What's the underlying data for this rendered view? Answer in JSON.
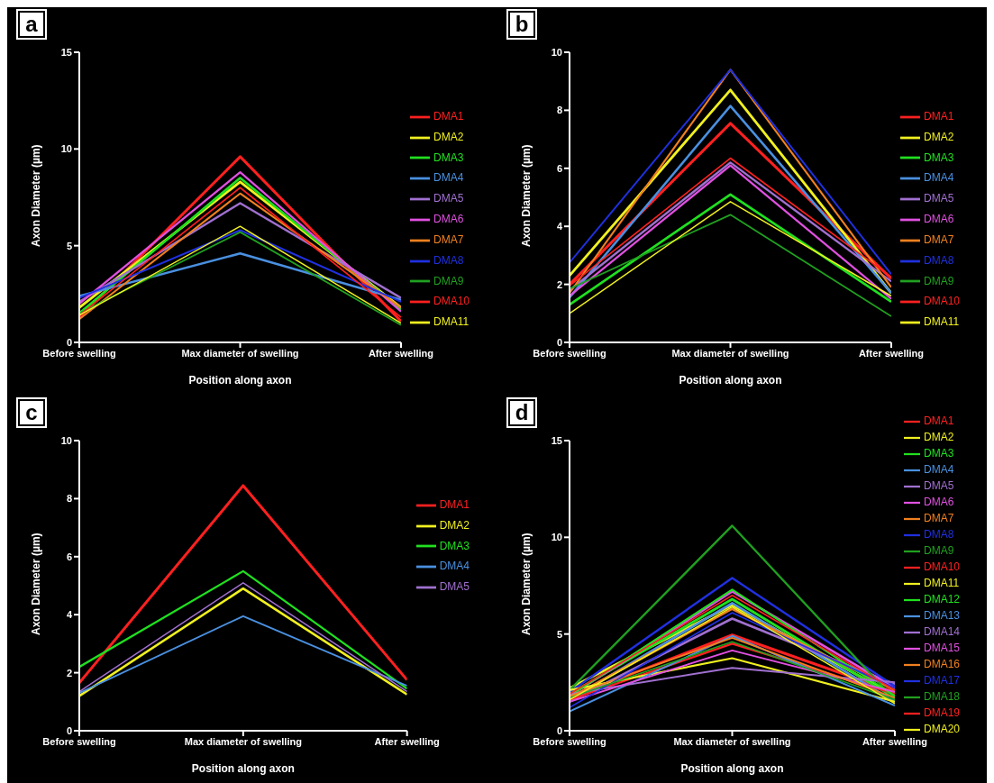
{
  "chart_data": [
    {
      "type": "line",
      "title": "a",
      "xlabel": "Position along axon",
      "ylabel": "Axon Diameter (µm)",
      "categories": [
        "Before swelling",
        "Max diameter of swelling",
        "After swelling"
      ],
      "ylim": [
        0,
        15
      ],
      "yticks": [
        0,
        5,
        10,
        15
      ],
      "legend": "right",
      "marker": "none",
      "series": [
        {
          "name": "DMA1",
          "color": "#ff2020",
          "values": [
            1.3,
            9.6,
            1.1
          ]
        },
        {
          "name": "DMA2",
          "color": "#f0f020",
          "values": [
            1.8,
            8.3,
            1.8
          ]
        },
        {
          "name": "DMA3",
          "color": "#20e020",
          "values": [
            1.5,
            8.5,
            1.7
          ]
        },
        {
          "name": "DMA4",
          "color": "#4a90e0",
          "values": [
            2.4,
            4.6,
            2.2
          ]
        },
        {
          "name": "DMA5",
          "color": "#a070d0",
          "values": [
            2.1,
            7.2,
            2.3
          ]
        },
        {
          "name": "DMA6",
          "color": "#e050e0",
          "values": [
            2.0,
            8.8,
            1.6
          ]
        },
        {
          "name": "DMA7",
          "color": "#f08020",
          "values": [
            1.2,
            7.7,
            1.8
          ]
        },
        {
          "name": "DMA8",
          "color": "#2030e0",
          "values": [
            2.3,
            5.8,
            2.1
          ]
        },
        {
          "name": "DMA9",
          "color": "#20a020",
          "values": [
            1.5,
            5.7,
            0.9
          ]
        },
        {
          "name": "DMA10",
          "color": "#ff2020",
          "values": [
            1.4,
            8.0,
            1.3
          ]
        },
        {
          "name": "DMA11",
          "color": "#f0f020",
          "values": [
            1.4,
            6.0,
            1.0
          ]
        }
      ]
    },
    {
      "type": "line",
      "title": "b",
      "xlabel": "Position along axon",
      "ylabel": "Axon Diameter (µm)",
      "categories": [
        "Before swelling",
        "Max diameter of swelling",
        "After swelling"
      ],
      "ylim": [
        0,
        10
      ],
      "yticks": [
        0,
        2,
        4,
        6,
        8,
        10
      ],
      "legend": "right",
      "marker": "none",
      "series": [
        {
          "name": "DMA1",
          "color": "#ff2020",
          "values": [
            2.0,
            7.55,
            2.2
          ]
        },
        {
          "name": "DMA2",
          "color": "#f0f020",
          "values": [
            2.3,
            8.7,
            1.7
          ]
        },
        {
          "name": "DMA3",
          "color": "#20e020",
          "values": [
            1.3,
            5.1,
            1.4
          ]
        },
        {
          "name": "DMA4",
          "color": "#4a90e0",
          "values": [
            1.55,
            8.15,
            1.7
          ]
        },
        {
          "name": "DMA5",
          "color": "#a070d0",
          "values": [
            1.8,
            6.2,
            2.1
          ]
        },
        {
          "name": "DMA6",
          "color": "#e050e0",
          "values": [
            1.6,
            6.1,
            1.5
          ]
        },
        {
          "name": "DMA7",
          "color": "#f08020",
          "values": [
            1.7,
            9.4,
            1.9
          ]
        },
        {
          "name": "DMA8",
          "color": "#2030e0",
          "values": [
            2.75,
            9.4,
            2.35
          ]
        },
        {
          "name": "DMA9",
          "color": "#20a020",
          "values": [
            1.85,
            4.4,
            0.9
          ]
        },
        {
          "name": "DMA10",
          "color": "#ff2020",
          "values": [
            1.95,
            6.35,
            2.25
          ]
        },
        {
          "name": "DMA11",
          "color": "#f0f020",
          "values": [
            1.0,
            4.85,
            1.6
          ]
        }
      ]
    },
    {
      "type": "line",
      "title": "c",
      "xlabel": "Position along axon",
      "ylabel": "Axon Diameter (µm)",
      "categories": [
        "Before swelling",
        "Max diameter of swelling",
        "After swelling"
      ],
      "ylim": [
        0,
        10
      ],
      "yticks": [
        0,
        2,
        4,
        6,
        8,
        10
      ],
      "legend": "right",
      "marker": "none",
      "series": [
        {
          "name": "DMA1",
          "color": "#ff2020",
          "values": [
            1.65,
            8.45,
            1.75
          ]
        },
        {
          "name": "DMA2",
          "color": "#f0f020",
          "values": [
            1.2,
            4.9,
            1.25
          ]
        },
        {
          "name": "DMA3",
          "color": "#20e020",
          "values": [
            2.2,
            5.5,
            1.45
          ]
        },
        {
          "name": "DMA4",
          "color": "#4a90e0",
          "values": [
            1.3,
            3.95,
            1.55
          ]
        },
        {
          "name": "DMA5",
          "color": "#a070d0",
          "values": [
            1.35,
            5.1,
            1.35
          ]
        }
      ]
    },
    {
      "type": "line",
      "title": "d",
      "xlabel": "Position along axon",
      "ylabel": "Axon Diameter (µm)",
      "categories": [
        "Before swelling",
        "Max diameter of swelling",
        "After swelling"
      ],
      "ylim": [
        0,
        15
      ],
      "yticks": [
        0,
        5,
        10,
        15
      ],
      "legend": "right",
      "marker": "none",
      "series": [
        {
          "name": "DMA1",
          "color": "#ff2020",
          "values": [
            1.7,
            4.95,
            2.0
          ]
        },
        {
          "name": "DMA2",
          "color": "#f0f020",
          "values": [
            2.2,
            6.5,
            1.8
          ]
        },
        {
          "name": "DMA3",
          "color": "#20e020",
          "values": [
            1.9,
            6.8,
            1.7
          ]
        },
        {
          "name": "DMA4",
          "color": "#4a90e0",
          "values": [
            1.6,
            6.6,
            1.5
          ]
        },
        {
          "name": "DMA5",
          "color": "#a070d0",
          "values": [
            1.5,
            5.8,
            2.4
          ]
        },
        {
          "name": "DMA6",
          "color": "#e050e0",
          "values": [
            1.8,
            7.2,
            2.2
          ]
        },
        {
          "name": "DMA7",
          "color": "#f08020",
          "values": [
            1.7,
            6.3,
            2.1
          ]
        },
        {
          "name": "DMA8",
          "color": "#2030e0",
          "values": [
            2.0,
            7.9,
            2.3
          ]
        },
        {
          "name": "DMA9",
          "color": "#20a020",
          "values": [
            2.1,
            10.6,
            1.6
          ]
        },
        {
          "name": "DMA10",
          "color": "#ff2020",
          "values": [
            1.6,
            4.5,
            1.9
          ]
        },
        {
          "name": "DMA11",
          "color": "#f0f020",
          "values": [
            2.1,
            3.75,
            1.5
          ]
        },
        {
          "name": "DMA12",
          "color": "#20e020",
          "values": [
            1.8,
            7.3,
            1.8
          ]
        },
        {
          "name": "DMA13",
          "color": "#4a90e0",
          "values": [
            1.0,
            4.9,
            1.3
          ]
        },
        {
          "name": "DMA14",
          "color": "#a070d0",
          "values": [
            1.9,
            3.25,
            2.5
          ]
        },
        {
          "name": "DMA15",
          "color": "#e050e0",
          "values": [
            1.5,
            4.15,
            2.0
          ]
        },
        {
          "name": "DMA16",
          "color": "#f08020",
          "values": [
            1.8,
            4.8,
            1.7
          ]
        },
        {
          "name": "DMA17",
          "color": "#2030e0",
          "values": [
            1.2,
            6.1,
            2.2
          ]
        },
        {
          "name": "DMA18",
          "color": "#20a020",
          "values": [
            1.7,
            4.6,
            1.6
          ]
        },
        {
          "name": "DMA19",
          "color": "#ff2020",
          "values": [
            1.9,
            7.0,
            2.1
          ]
        },
        {
          "name": "DMA20",
          "color": "#f0f020",
          "values": [
            1.6,
            6.4,
            1.4
          ]
        }
      ]
    }
  ]
}
